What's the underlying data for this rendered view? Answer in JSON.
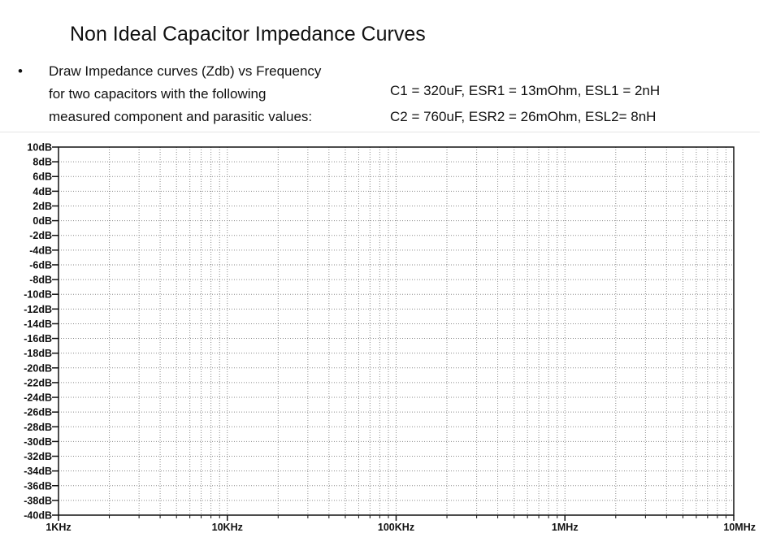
{
  "header": {
    "title": "Non Ideal Capacitor Impedance Curves",
    "bullet": "•",
    "description_lines": [
      "Draw Impedance curves (Zdb) vs Frequency",
      "for two capacitors with the following",
      "measured component and parasitic values:"
    ],
    "component_values": [
      "C1 = 320uF,  ESR1 =  13mOhm,  ESL1 = 2nH",
      "C2 = 760uF,  ESR2 =  26mOhm,  ESL2= 8nH"
    ]
  },
  "chart_data": {
    "type": "line",
    "title": "",
    "xlabel": "",
    "ylabel": "",
    "x_scale": "log",
    "xlim": [
      1000,
      10000000
    ],
    "ylim": [
      -40,
      10
    ],
    "grid": true,
    "grid_style": "dotted",
    "x_ticks": [
      {
        "value": 1000,
        "label": "1KHz"
      },
      {
        "value": 10000,
        "label": "10KHz"
      },
      {
        "value": 100000,
        "label": "100KHz"
      },
      {
        "value": 1000000,
        "label": "1MHz"
      },
      {
        "value": 10000000,
        "label": "10MHz"
      }
    ],
    "y_ticks": [
      {
        "value": 10,
        "label": "10dB"
      },
      {
        "value": 8,
        "label": "8dB"
      },
      {
        "value": 6,
        "label": "6dB"
      },
      {
        "value": 4,
        "label": "4dB"
      },
      {
        "value": 2,
        "label": "2dB"
      },
      {
        "value": 0,
        "label": "0dB"
      },
      {
        "value": -2,
        "label": "-2dB"
      },
      {
        "value": -4,
        "label": "-4dB"
      },
      {
        "value": -6,
        "label": "-6dB"
      },
      {
        "value": -8,
        "label": "-8dB"
      },
      {
        "value": -10,
        "label": "-10dB"
      },
      {
        "value": -12,
        "label": "-12dB"
      },
      {
        "value": -14,
        "label": "-14dB"
      },
      {
        "value": -16,
        "label": "-16dB"
      },
      {
        "value": -18,
        "label": "-18dB"
      },
      {
        "value": -20,
        "label": "-20dB"
      },
      {
        "value": -22,
        "label": "-22dB"
      },
      {
        "value": -24,
        "label": "-24dB"
      },
      {
        "value": -26,
        "label": "-26dB"
      },
      {
        "value": -28,
        "label": "-28dB"
      },
      {
        "value": -30,
        "label": "-30dB"
      },
      {
        "value": -32,
        "label": "-32dB"
      },
      {
        "value": -34,
        "label": "-34dB"
      },
      {
        "value": -36,
        "label": "-36dB"
      },
      {
        "value": -38,
        "label": "-38dB"
      },
      {
        "value": -40,
        "label": "-40dB"
      }
    ],
    "series": []
  }
}
